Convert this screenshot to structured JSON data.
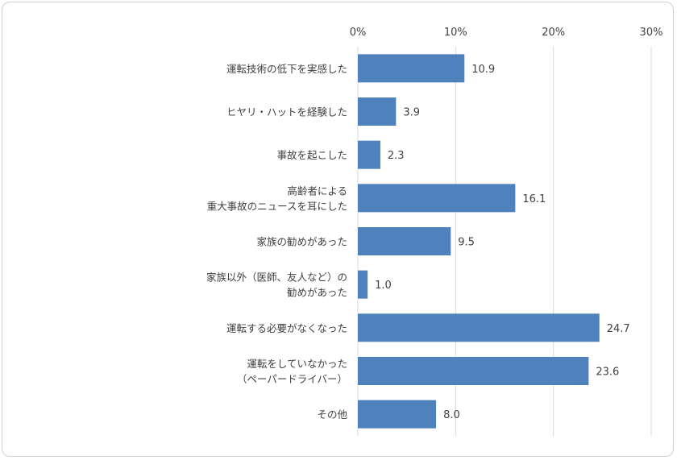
{
  "chart_data": {
    "type": "bar",
    "orientation": "horizontal",
    "title": "",
    "xlabel": "",
    "ylabel": "",
    "xlim": [
      0,
      30
    ],
    "tick_values": [
      0,
      10,
      20,
      30
    ],
    "tick_labels": [
      "0%",
      "10%",
      "20%",
      "30%"
    ],
    "axis_position": "top",
    "grid": true,
    "legend": "none",
    "bar_color": "#4F81BD",
    "categories": [
      [
        "運転技術の低下を実感した"
      ],
      [
        "ヒヤリ・ハットを経験した"
      ],
      [
        "事故を起こした"
      ],
      [
        "高齢者による",
        "重大事故のニュースを耳にした"
      ],
      [
        "家族の勧めがあった"
      ],
      [
        "家族以外（医師、友人など）の",
        "勧めがあった"
      ],
      [
        "運転する必要がなくなった"
      ],
      [
        "運転をしていなかった",
        "（ペーパードライバー）"
      ],
      [
        "その他"
      ]
    ],
    "values": [
      10.9,
      3.9,
      2.3,
      16.1,
      9.5,
      1.0,
      24.7,
      23.6,
      8.0
    ],
    "value_labels": [
      "10.9",
      "3.9",
      "2.3",
      "16.1",
      "9.5",
      "1.0",
      "24.7",
      "23.6",
      "8.0"
    ]
  }
}
